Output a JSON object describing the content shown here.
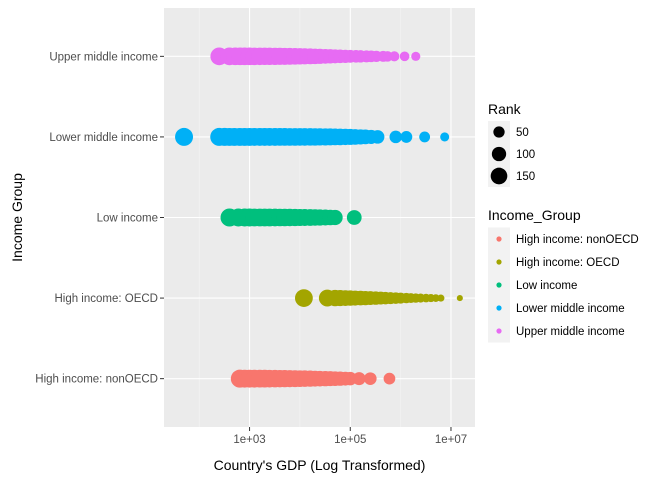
{
  "chart_data": {
    "type": "scatter",
    "xlabel": "Country's GDP (Log Transformed)",
    "ylabel": "Income Group",
    "x_scale": "log10",
    "xlim": [
      20,
      30000000
    ],
    "x_ticks": [
      {
        "value": 1000,
        "label": "1e+03"
      },
      {
        "value": 100000,
        "label": "1e+05"
      },
      {
        "value": 10000000,
        "label": "1e+07"
      }
    ],
    "categories": [
      "High income: nonOECD",
      "High income: OECD",
      "Low income",
      "Lower middle income",
      "Upper middle income"
    ],
    "grid": true,
    "legend_position": "right",
    "size_legend": {
      "title": "Rank",
      "entries": [
        {
          "value": 50,
          "label": "50"
        },
        {
          "value": 100,
          "label": "100"
        },
        {
          "value": 150,
          "label": "150"
        }
      ]
    },
    "color_legend": {
      "title": "Income_Group",
      "entries": [
        {
          "name": "High income: nonOECD",
          "color": "#F8766D"
        },
        {
          "name": "High income: OECD",
          "color": "#A3A500"
        },
        {
          "name": "Low income",
          "color": "#00BF7D"
        },
        {
          "name": "Lower middle income",
          "color": "#00B0F6"
        },
        {
          "name": "Upper middle income",
          "color": "#E76BF3"
        }
      ]
    },
    "series": [
      {
        "name": "High income: nonOECD",
        "color": "#F8766D",
        "x": [
          640,
          800,
          1000,
          1250,
          1600,
          2000,
          2500,
          3200,
          4000,
          5000,
          6300,
          8000,
          10000,
          12500,
          16000,
          20000,
          25000,
          32000,
          40000,
          50000,
          63000,
          80000,
          100000,
          150000,
          250000,
          600000
        ],
        "rank": [
          183,
          182,
          181,
          180,
          178,
          176,
          174,
          171,
          168,
          165,
          161,
          156,
          151,
          146,
          140,
          133,
          126,
          120,
          113,
          106,
          99,
          91,
          84,
          77,
          70,
          56
        ]
      },
      {
        "name": "High income: OECD",
        "color": "#A3A500",
        "x": [
          12000,
          35000,
          50000,
          63000,
          80000,
          100000,
          125000,
          160000,
          200000,
          250000,
          320000,
          400000,
          500000,
          630000,
          800000,
          1000000,
          1300000,
          1600000,
          2000000,
          2500000,
          3200000,
          4000000,
          5000000,
          6300000,
          15000000
        ],
        "rank": [
          178,
          155,
          146,
          137,
          130,
          122,
          114,
          107,
          99,
          91,
          83,
          75,
          68,
          60,
          53,
          46,
          39,
          33,
          28,
          24,
          20,
          16,
          13,
          9,
          4
        ]
      },
      {
        "name": "Low income",
        "color": "#00BF7D",
        "x": [
          400,
          600,
          800,
          1000,
          1250,
          1600,
          2000,
          2500,
          3200,
          4000,
          5000,
          6300,
          8000,
          10000,
          12500,
          16000,
          20000,
          25000,
          32000,
          40000,
          50000,
          120000
        ],
        "rank": [
          184,
          183,
          182,
          181,
          180,
          179,
          178,
          177,
          176,
          174,
          171,
          168,
          164,
          160,
          156,
          151,
          145,
          139,
          133,
          125,
          117,
          109
        ]
      },
      {
        "name": "Lower middle income",
        "color": "#00B0F6",
        "x": [
          50,
          250,
          320,
          400,
          500,
          640,
          800,
          1000,
          1250,
          1600,
          2000,
          2500,
          3200,
          4000,
          5000,
          6300,
          8000,
          10000,
          12500,
          16000,
          20000,
          25000,
          32000,
          40000,
          50000,
          63000,
          80000,
          100000,
          125000,
          160000,
          200000,
          260000,
          350000,
          800000,
          1300000,
          3000000,
          7500000
        ],
        "rank": [
          184,
          184,
          184,
          183,
          183,
          183,
          182,
          182,
          181,
          181,
          180,
          180,
          179,
          178,
          177,
          176,
          175,
          174,
          173,
          171,
          168,
          165,
          162,
          158,
          153,
          148,
          142,
          135,
          127,
          118,
          108,
          97,
          85,
          68,
          58,
          44,
          24
        ]
      },
      {
        "name": "Upper middle income",
        "color": "#E76BF3",
        "x": [
          250,
          400,
          520,
          650,
          800,
          1000,
          1250,
          1600,
          2000,
          2500,
          3200,
          4000,
          5000,
          6300,
          8000,
          10000,
          12500,
          16000,
          20000,
          25000,
          32000,
          40000,
          50000,
          63000,
          80000,
          100000,
          130000,
          160000,
          210000,
          260000,
          330000,
          450000,
          550000,
          750000,
          1200000,
          2000000
        ],
        "rank": [
          176,
          176,
          175,
          175,
          174,
          173,
          172,
          171,
          169,
          167,
          165,
          162,
          159,
          155,
          150,
          145,
          139,
          132,
          124,
          116,
          108,
          100,
          93,
          86,
          80,
          74,
          69,
          65,
          60,
          55,
          50,
          45,
          40,
          35,
          30,
          25
        ]
      }
    ]
  }
}
